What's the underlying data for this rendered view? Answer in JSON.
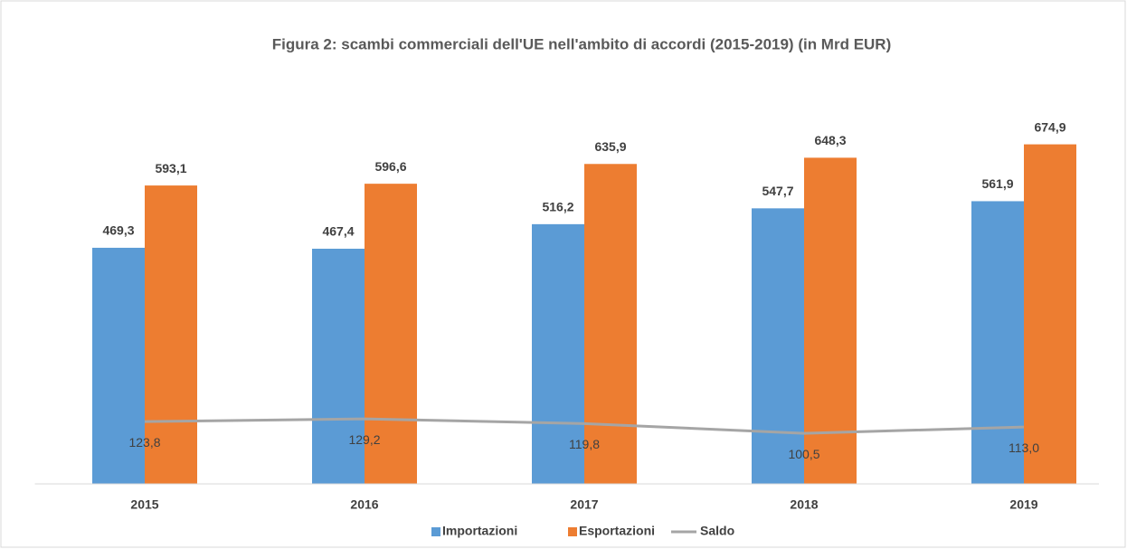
{
  "chart_data": {
    "type": "bar",
    "title": "Figura 2: scambi commerciali dell'UE nell'ambito di accordi (2015-2019) (in Mrd EUR)",
    "categories": [
      "2015",
      "2016",
      "2017",
      "2018",
      "2019"
    ],
    "ylim": [
      0,
      800
    ],
    "legend": "bottom",
    "series": [
      {
        "name": "Importazioni",
        "type": "bar",
        "color": "#5b9bd5",
        "values": [
          469.3,
          467.4,
          516.2,
          547.7,
          561.9
        ],
        "value_labels": [
          "469,3",
          "467,4",
          "516,2",
          "547,7",
          "561,9"
        ]
      },
      {
        "name": "Esportazioni",
        "type": "bar",
        "color": "#ed7d31",
        "values": [
          593.1,
          596.6,
          635.9,
          648.3,
          674.9
        ],
        "value_labels": [
          "593,1",
          "596,6",
          "635,9",
          "648,3",
          "674,9"
        ]
      },
      {
        "name": "Saldo",
        "type": "line",
        "color": "#a5a5a5",
        "values": [
          123.8,
          129.2,
          119.8,
          100.5,
          113.0
        ],
        "value_labels": [
          "123,8",
          "129,2",
          "119,8",
          "100,5",
          "113,0"
        ]
      }
    ]
  }
}
